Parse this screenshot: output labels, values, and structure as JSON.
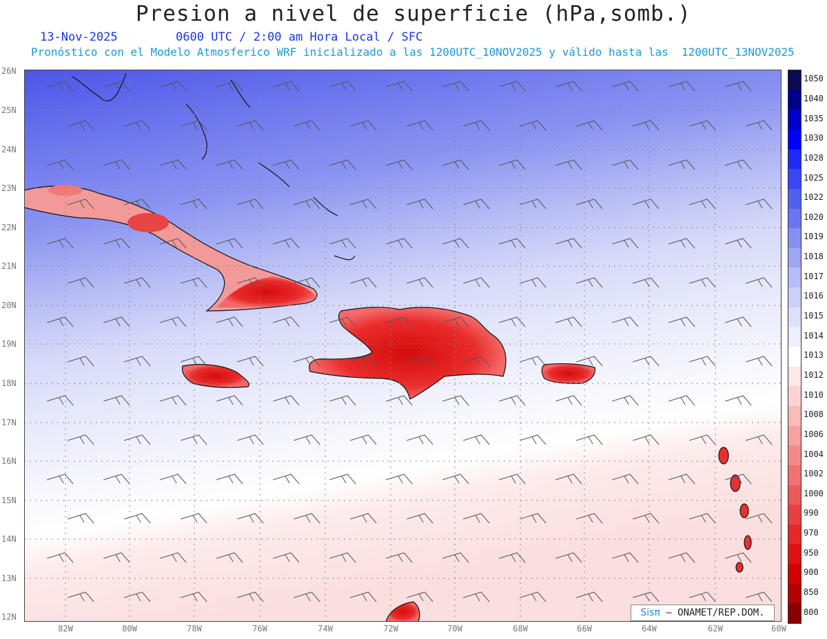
{
  "title": "Presion a nivel de superficie (hPa,somb.)",
  "date": "13-Nov-2025",
  "time_info": "0600 UTC / 2:00 am Hora Local / SFC",
  "model_info": "Pronóstico con el Modelo Atmosferico WRF inicializado a las 1200UTC_10NOV2025 y válido hasta las  1200UTC_13NOV2025",
  "credit_logo": "Sisπ",
  "credit_text": "– ONAMET/REP.DOM.",
  "lat_labels": [
    "26N",
    "25N",
    "24N",
    "23N",
    "22N",
    "21N",
    "20N",
    "19N",
    "18N",
    "17N",
    "16N",
    "15N",
    "14N",
    "13N",
    "12N"
  ],
  "lon_labels": [
    "82W",
    "80W",
    "78W",
    "76W",
    "74W",
    "72W",
    "70W",
    "68W",
    "66W",
    "64W",
    "62W",
    "60W"
  ],
  "colorbar": {
    "labels": [
      "1050",
      "1040",
      "1035",
      "1030",
      "1028",
      "1025",
      "1022",
      "1020",
      "1019",
      "1018",
      "1017",
      "1016",
      "1015",
      "1014",
      "1013",
      "1012",
      "1010",
      "1008",
      "1006",
      "1004",
      "1002",
      "1000",
      "990",
      "970",
      "950",
      "900",
      "850",
      "800"
    ],
    "colors": [
      "#0a0a55",
      "#00008c",
      "#0000c8",
      "#0000ff",
      "#1c2cf8",
      "#3a48f2",
      "#5360ee",
      "#6a76f0",
      "#8590f2",
      "#9ea6f4",
      "#b6bcf6",
      "#cbd0f8",
      "#dde0fa",
      "#eeeffc",
      "#ffffff",
      "#fde6e6",
      "#fcd2d2",
      "#f9baba",
      "#f6a2a2",
      "#f38a8a",
      "#f07272",
      "#ec5a5a",
      "#e84040",
      "#e52828",
      "#e21212",
      "#d20000",
      "#b00000",
      "#880000"
    ]
  },
  "colors": {
    "title": "#222222",
    "date_text": "#1a35e8",
    "model_text": "#1a9ad8"
  }
}
